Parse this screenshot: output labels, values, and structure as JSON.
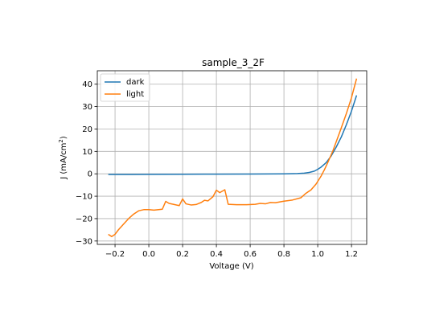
{
  "chart_data": {
    "type": "line",
    "title": "sample_3_2F",
    "xlabel": "Voltage (V)",
    "ylabel": "J (mA/cm",
    "ylabel_sup": "2",
    "ylabel_end": ")",
    "xlim": [
      -0.305,
      1.29
    ],
    "ylim": [
      -31.5,
      46
    ],
    "xticks": [
      -0.2,
      0.0,
      0.2,
      0.4,
      0.6,
      0.8,
      1.0,
      1.2
    ],
    "xtick_labels": [
      "−0.2",
      "0.0",
      "0.2",
      "0.4",
      "0.6",
      "0.8",
      "1.0",
      "1.2"
    ],
    "yticks": [
      -30,
      -20,
      -10,
      0,
      10,
      20,
      30,
      40
    ],
    "ytick_labels": [
      "−30",
      "−20",
      "−10",
      "0",
      "10",
      "20",
      "30",
      "40"
    ],
    "grid": true,
    "legend_position": "upper-left",
    "series": [
      {
        "name": "dark",
        "color": "#1f77b4",
        "points": [
          [
            -0.24,
            -0.3
          ],
          [
            -0.1,
            -0.3
          ],
          [
            0.0,
            -0.25
          ],
          [
            0.2,
            -0.2
          ],
          [
            0.4,
            -0.15
          ],
          [
            0.6,
            -0.1
          ],
          [
            0.8,
            0.0
          ],
          [
            0.88,
            0.1
          ],
          [
            0.92,
            0.3
          ],
          [
            0.95,
            0.6
          ],
          [
            0.98,
            1.2
          ],
          [
            1.0,
            2.0
          ],
          [
            1.02,
            3.0
          ],
          [
            1.05,
            5.0
          ],
          [
            1.08,
            8.0
          ],
          [
            1.11,
            12.0
          ],
          [
            1.14,
            16.5
          ],
          [
            1.17,
            22.0
          ],
          [
            1.2,
            28.0
          ],
          [
            1.23,
            35.0
          ]
        ]
      },
      {
        "name": "light",
        "color": "#ff7f0e",
        "points": [
          [
            -0.24,
            -27.0
          ],
          [
            -0.22,
            -28.0
          ],
          [
            -0.2,
            -27.0
          ],
          [
            -0.18,
            -25.0
          ],
          [
            -0.15,
            -22.5
          ],
          [
            -0.12,
            -20.0
          ],
          [
            -0.09,
            -18.0
          ],
          [
            -0.06,
            -16.5
          ],
          [
            -0.03,
            -16.0
          ],
          [
            0.0,
            -16.0
          ],
          [
            0.03,
            -16.2
          ],
          [
            0.08,
            -15.8
          ],
          [
            0.1,
            -12.3
          ],
          [
            0.12,
            -13.2
          ],
          [
            0.15,
            -13.7
          ],
          [
            0.18,
            -14.2
          ],
          [
            0.2,
            -11.2
          ],
          [
            0.22,
            -13.4
          ],
          [
            0.25,
            -13.9
          ],
          [
            0.28,
            -13.7
          ],
          [
            0.31,
            -12.8
          ],
          [
            0.33,
            -11.8
          ],
          [
            0.35,
            -12.1
          ],
          [
            0.38,
            -10.2
          ],
          [
            0.4,
            -7.3
          ],
          [
            0.42,
            -8.4
          ],
          [
            0.45,
            -7.1
          ],
          [
            0.47,
            -13.6
          ],
          [
            0.52,
            -13.8
          ],
          [
            0.58,
            -13.8
          ],
          [
            0.63,
            -13.6
          ],
          [
            0.66,
            -13.2
          ],
          [
            0.69,
            -13.4
          ],
          [
            0.72,
            -12.8
          ],
          [
            0.75,
            -12.9
          ],
          [
            0.8,
            -12.2
          ],
          [
            0.85,
            -11.7
          ],
          [
            0.9,
            -10.7
          ],
          [
            0.93,
            -8.7
          ],
          [
            0.96,
            -7.2
          ],
          [
            0.99,
            -4.6
          ],
          [
            1.02,
            -1.0
          ],
          [
            1.04,
            1.9
          ],
          [
            1.06,
            5.1
          ],
          [
            1.09,
            10.3
          ],
          [
            1.13,
            18.5
          ],
          [
            1.17,
            27.0
          ],
          [
            1.2,
            34.0
          ],
          [
            1.23,
            42.5
          ]
        ]
      }
    ]
  }
}
